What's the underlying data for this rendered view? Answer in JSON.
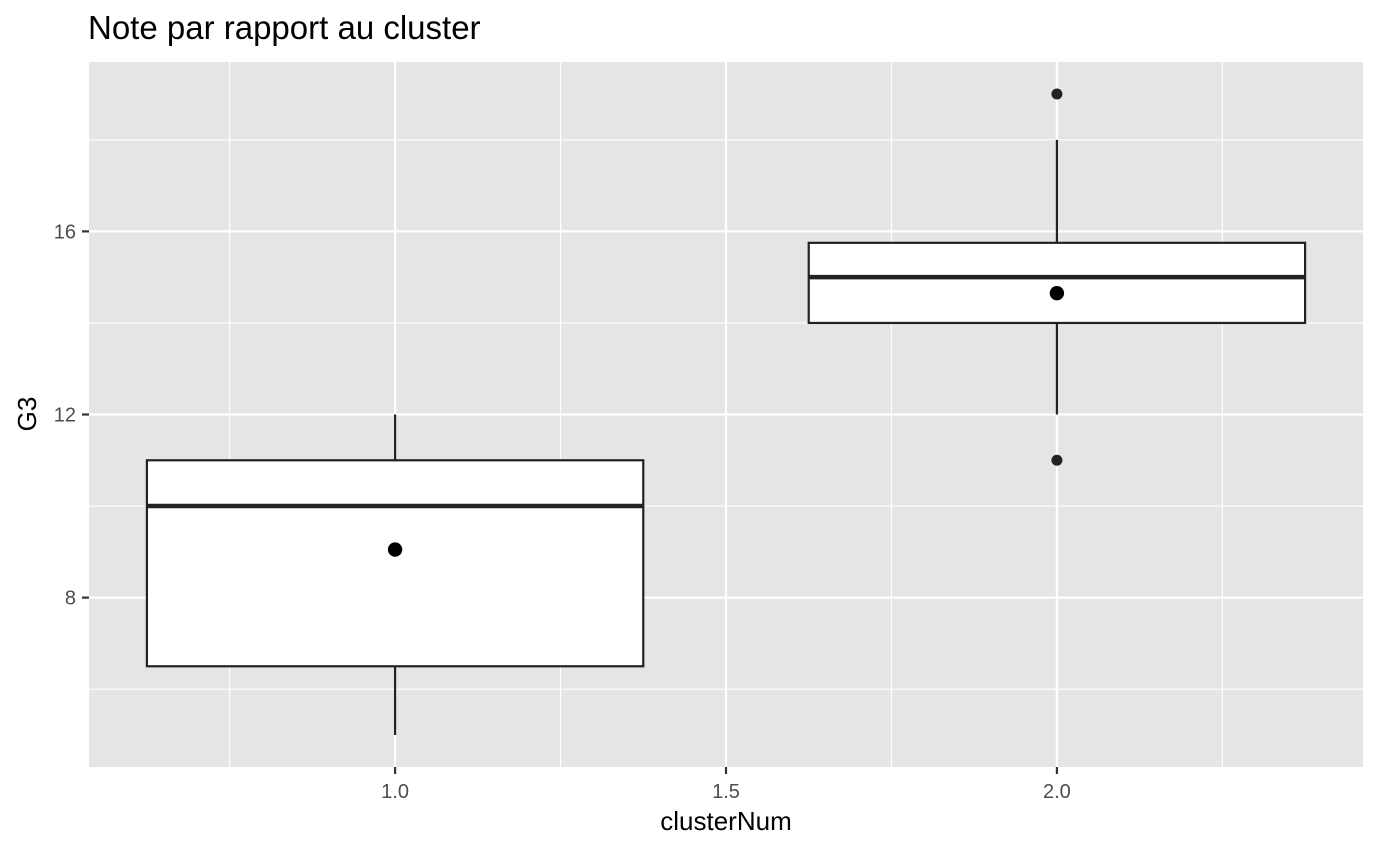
{
  "chart_data": {
    "type": "boxplot",
    "title": "Note par rapport au cluster",
    "xlabel": "clusterNum",
    "ylabel": "G3",
    "xlim": [
      0.5375,
      2.4625
    ],
    "ylim": [
      4.3,
      19.7
    ],
    "x_ticks": [
      1.0,
      1.5,
      2.0
    ],
    "x_tick_labels": [
      "1.0",
      "1.5",
      "2.0"
    ],
    "x_minor": [
      0.75,
      1.25,
      1.75,
      2.25
    ],
    "y_ticks": [
      8,
      12,
      16
    ],
    "y_tick_labels": [
      "8",
      "12",
      "16"
    ],
    "y_minor": [
      6,
      10,
      14,
      18
    ],
    "grid": true,
    "panel_background": "#e5e5e5",
    "grid_color": "#ffffff",
    "box_fill": "#ffffff",
    "line_color": "#222222",
    "box_width": 0.75,
    "boxes": [
      {
        "x": 1.0,
        "whisker_low": 5.0,
        "q1": 6.5,
        "median": 10.0,
        "q3": 11.0,
        "whisker_high": 12.0,
        "mean": 9.05,
        "outliers": []
      },
      {
        "x": 2.0,
        "whisker_low": 12.0,
        "q1": 14.0,
        "median": 15.0,
        "q3": 15.75,
        "whisker_high": 18.0,
        "mean": 14.65,
        "outliers": [
          11.0,
          19.0
        ]
      }
    ]
  }
}
